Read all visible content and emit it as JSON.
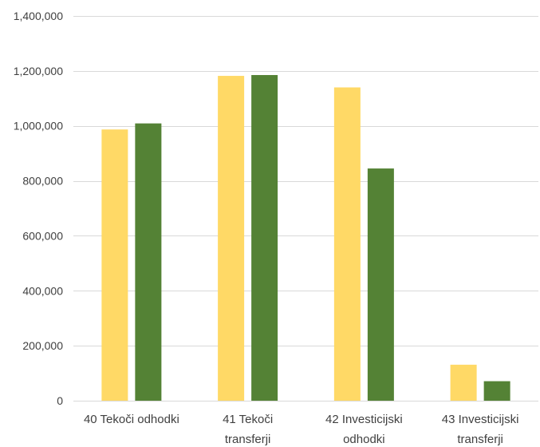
{
  "chart_data": {
    "type": "bar",
    "categories": [
      [
        "40 Tekoči odhodki"
      ],
      [
        "41 Tekoči",
        "transferji"
      ],
      [
        "42 Investicijski",
        "odhodki"
      ],
      [
        "43 Investicijski",
        "transferji"
      ]
    ],
    "series": [
      {
        "values": [
          987000,
          1182000,
          1140000,
          131000
        ],
        "color": "#FFD966"
      },
      {
        "values": [
          1009000,
          1185000,
          845000,
          71000
        ],
        "color": "#548235"
      }
    ],
    "y_ticks": [
      0,
      200000,
      400000,
      600000,
      800000,
      1000000,
      1200000,
      1400000
    ],
    "y_tick_labels": [
      "0",
      "200,000",
      "400,000",
      "600,000",
      "800,000",
      "1,000,000",
      "1,200,000",
      "1,400,000"
    ],
    "ylim": [
      0,
      1400000
    ],
    "title": "",
    "xlabel": "",
    "ylabel": "",
    "grid": "horizontal",
    "legend": "none"
  }
}
